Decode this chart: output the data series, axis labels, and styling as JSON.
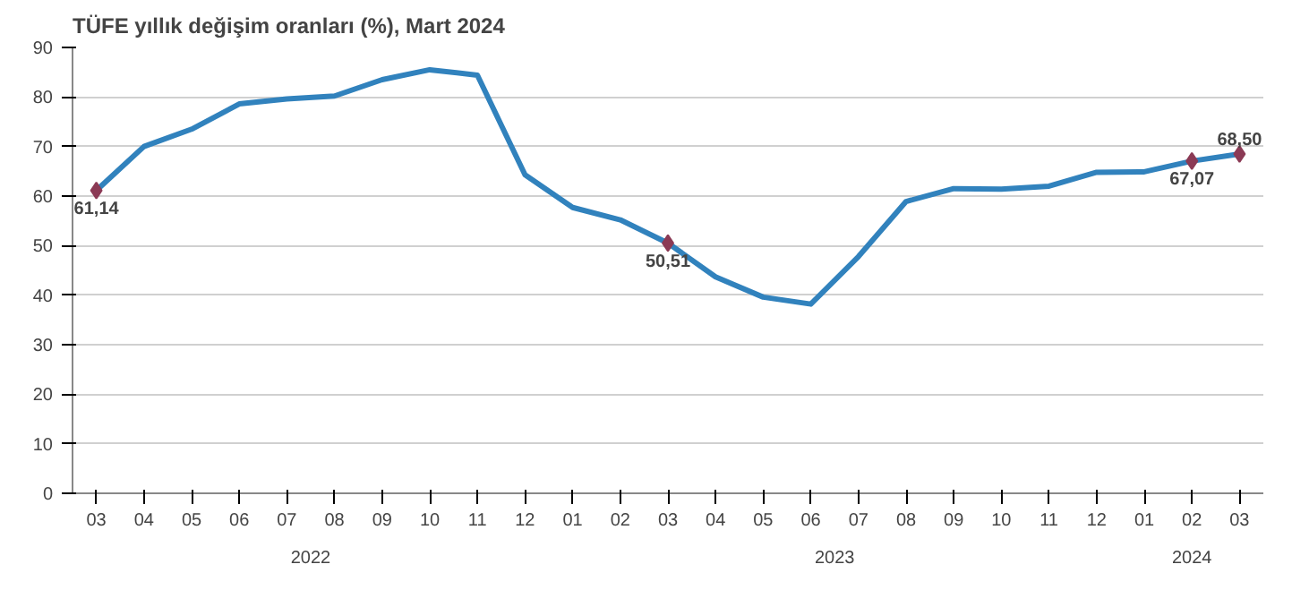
{
  "chart_data": {
    "type": "line",
    "title": "TÜFE yıllık değişim oranları (%), Mart 2024",
    "categories": [
      "03",
      "04",
      "05",
      "06",
      "07",
      "08",
      "09",
      "10",
      "11",
      "12",
      "01",
      "02",
      "03",
      "04",
      "05",
      "06",
      "07",
      "08",
      "09",
      "10",
      "11",
      "12",
      "01",
      "02",
      "03"
    ],
    "series": [
      {
        "color": "#3182bd",
        "values": [
          61.14,
          70.0,
          73.5,
          78.6,
          79.6,
          80.2,
          83.5,
          85.5,
          84.4,
          64.3,
          57.7,
          55.2,
          50.51,
          43.7,
          39.6,
          38.2,
          47.8,
          58.9,
          61.5,
          61.4,
          62.0,
          64.8,
          64.9,
          67.07,
          68.5
        ],
        "value_labels": [
          "61,14",
          null,
          null,
          null,
          null,
          null,
          null,
          null,
          null,
          null,
          null,
          null,
          "50,51",
          null,
          null,
          null,
          null,
          null,
          null,
          null,
          null,
          null,
          null,
          "67,07",
          "68,50"
        ]
      }
    ],
    "annotations": [
      "2022",
      "2023",
      "2024"
    ],
    "ylim": [
      0,
      90
    ],
    "yticks": [
      0,
      10,
      20,
      30,
      40,
      50,
      60,
      70,
      80,
      90
    ],
    "grid": "y"
  }
}
